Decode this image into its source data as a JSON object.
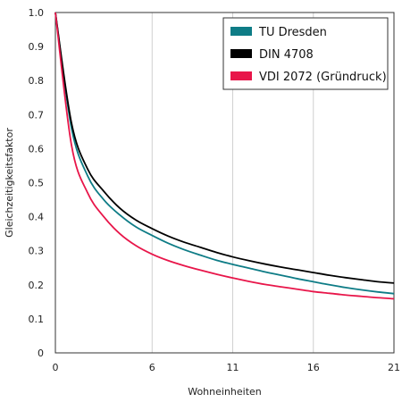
{
  "chart_data": {
    "type": "line",
    "xlabel": "Wohneinheiten",
    "ylabel": "Gleichzeitigkeitsfaktor",
    "xlim": [
      0,
      21
    ],
    "ylim": [
      0,
      1.0
    ],
    "x_ticks": [
      0,
      6,
      11,
      16,
      21
    ],
    "y_ticks": [
      0,
      0.1,
      0.2,
      0.3,
      0.4,
      0.5,
      0.6,
      0.7,
      0.8,
      0.9,
      1.0
    ],
    "x_tick_labels": [
      "0",
      "6",
      "11",
      "16",
      "21"
    ],
    "y_tick_labels": [
      "0",
      "0.1",
      "0.2",
      "0.3",
      "0.4",
      "0.5",
      "0.6",
      "0.7",
      "0.8",
      "0.9",
      "1.0"
    ],
    "grid": true,
    "legend_position": "top-right",
    "x": [
      0,
      1,
      2,
      3,
      4,
      5,
      6,
      7,
      8,
      9,
      10,
      11,
      12,
      13,
      14,
      15,
      16,
      17,
      18,
      19,
      20,
      21
    ],
    "series": [
      {
        "name": "TU Dresden",
        "color": "#0E7C86",
        "values": [
          1.0,
          0.66,
          0.52,
          0.45,
          0.405,
          0.37,
          0.345,
          0.322,
          0.303,
          0.287,
          0.272,
          0.26,
          0.249,
          0.238,
          0.228,
          0.218,
          0.209,
          0.2,
          0.192,
          0.185,
          0.179,
          0.174
        ]
      },
      {
        "name": "DIN 4708",
        "color": "#000000",
        "values": [
          1.0,
          0.675,
          0.54,
          0.475,
          0.425,
          0.39,
          0.365,
          0.343,
          0.325,
          0.31,
          0.295,
          0.282,
          0.271,
          0.261,
          0.252,
          0.244,
          0.236,
          0.228,
          0.221,
          0.215,
          0.209,
          0.205
        ]
      },
      {
        "name": "VDI 2072 (Gründruck)",
        "color": "#E8164A",
        "values": [
          1.0,
          0.61,
          0.47,
          0.4,
          0.35,
          0.315,
          0.29,
          0.271,
          0.256,
          0.243,
          0.231,
          0.22,
          0.21,
          0.201,
          0.194,
          0.187,
          0.18,
          0.175,
          0.17,
          0.166,
          0.162,
          0.159
        ]
      }
    ]
  }
}
